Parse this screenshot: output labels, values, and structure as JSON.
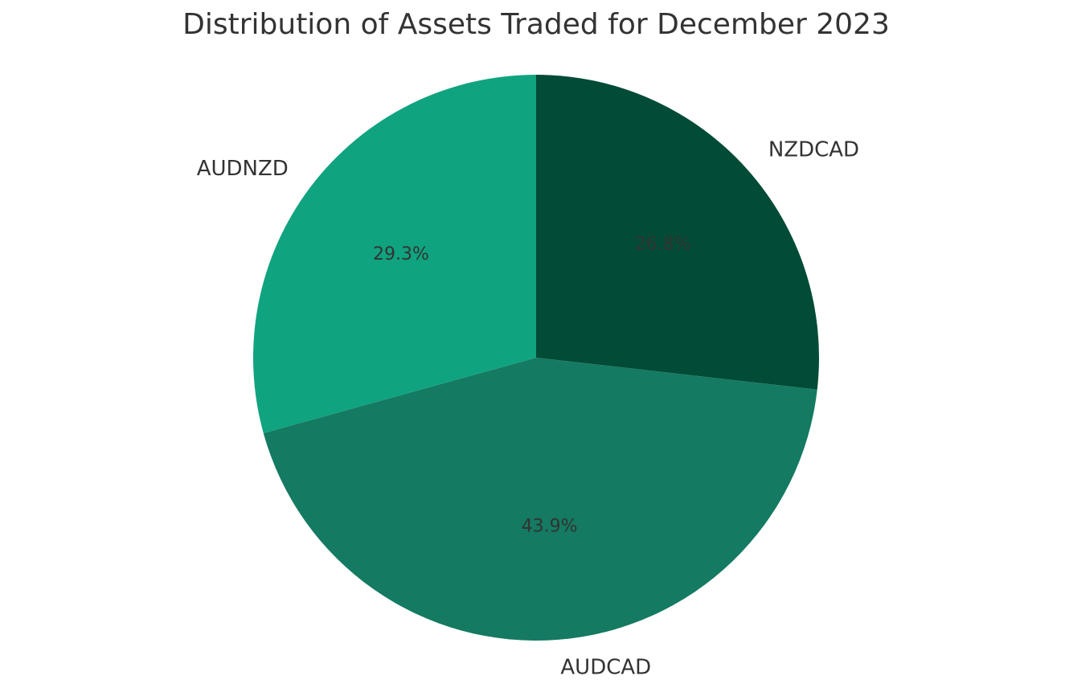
{
  "chart_data": {
    "type": "pie",
    "title": "Distribution of Assets Traded for December 2023",
    "categories": [
      "NZDCAD",
      "AUDCAD",
      "AUDNZD"
    ],
    "values": [
      26.8,
      43.9,
      29.3
    ],
    "value_labels": [
      "26.8%",
      "43.9%",
      "29.3%"
    ],
    "colors": [
      "#024b36",
      "#147a62",
      "#10a37f"
    ]
  }
}
